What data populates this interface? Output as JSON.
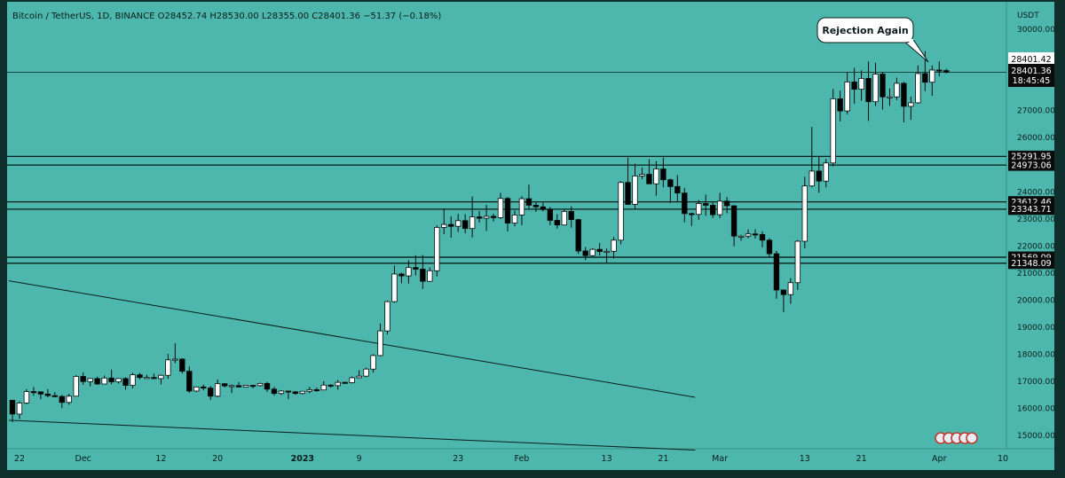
{
  "header": {
    "info": "Bitcoin / TetherUS, 1D, BINANCE  O28452.74  H28530.00  L28355.00  C28401.36  −51.37 (−0.18%)"
  },
  "callout": "Rejection Again",
  "price_labels": {
    "last_price": "28401.42",
    "current_price": "28401.36",
    "countdown": "18:45:45"
  },
  "colors": {
    "background": "#4db7ae",
    "panel": "#0f2f2c",
    "candle_up": "#ffffff",
    "candle_down": "#000000",
    "axis_text": "#0b1d1b"
  },
  "chart_data": {
    "type": "candlestick",
    "symbol": "Bitcoin / TetherUS",
    "interval": "1D",
    "exchange": "BINANCE",
    "y_unit": "USDT",
    "ylim": [
      14500,
      31000
    ],
    "y_ticks": [
      15000,
      16000,
      17000,
      18000,
      19000,
      20000,
      21000,
      22000,
      23000,
      24000,
      25000,
      26000,
      27000,
      28000,
      29000,
      30000
    ],
    "y_tick_labels": [
      "15000.00",
      "16000.00",
      "17000.00",
      "18000.00",
      "19000.00",
      "20000.00",
      "21000.00",
      "22000.00",
      "23000.00",
      "24000.00",
      "25000.00",
      "26000.00",
      "27000.00",
      "28000.00",
      "29000.00",
      "30000.00"
    ],
    "x_start": "2022-11-21",
    "x_end": "2023-04-11",
    "x_ticks": [
      {
        "date": "2022-11-22",
        "label": "22"
      },
      {
        "date": "2022-12-01",
        "label": "Dec"
      },
      {
        "date": "2022-12-12",
        "label": "12"
      },
      {
        "date": "2022-12-20",
        "label": "20"
      },
      {
        "date": "2023-01-01",
        "label": "2023"
      },
      {
        "date": "2023-01-09",
        "label": "9"
      },
      {
        "date": "2023-01-23",
        "label": "23"
      },
      {
        "date": "2023-02-01",
        "label": "Feb"
      },
      {
        "date": "2023-02-13",
        "label": "13"
      },
      {
        "date": "2023-02-21",
        "label": "21"
      },
      {
        "date": "2023-03-01",
        "label": "Mar"
      },
      {
        "date": "2023-03-13",
        "label": "13"
      },
      {
        "date": "2023-03-21",
        "label": "21"
      },
      {
        "date": "2023-04-01",
        "label": "Apr"
      },
      {
        "date": "2023-04-10",
        "label": "10"
      }
    ],
    "horizontal_levels": [
      {
        "price": 25291.95,
        "label": "25291.95"
      },
      {
        "price": 24973.06,
        "label": "24973.06"
      },
      {
        "price": 23612.46,
        "label": "23612.46"
      },
      {
        "price": 23343.71,
        "label": "23343.71"
      },
      {
        "price": 21569.09,
        "label": "21569.09"
      },
      {
        "price": 21348.09,
        "label": "21348.09"
      }
    ],
    "last_price_level": 28401.36,
    "trendlines": [
      {
        "from": {
          "date": "2022-11-21",
          "price": 20700
        },
        "to": {
          "date": "2023-02-26",
          "price": 16400
        }
      },
      {
        "from": {
          "date": "2022-11-21",
          "price": 15550
        },
        "to": {
          "date": "2023-02-26",
          "price": 14450
        }
      }
    ],
    "candles": [
      {
        "d": "2022-11-21",
        "o": 16290,
        "h": 16300,
        "l": 15480,
        "c": 15780
      },
      {
        "d": "2022-11-22",
        "o": 15780,
        "h": 16250,
        "l": 15600,
        "c": 16190
      },
      {
        "d": "2022-11-23",
        "o": 16190,
        "h": 16700,
        "l": 16150,
        "c": 16610
      },
      {
        "d": "2022-11-24",
        "o": 16610,
        "h": 16780,
        "l": 16460,
        "c": 16600
      },
      {
        "d": "2022-11-25",
        "o": 16600,
        "h": 16610,
        "l": 16330,
        "c": 16520
      },
      {
        "d": "2022-11-26",
        "o": 16520,
        "h": 16700,
        "l": 16400,
        "c": 16460
      },
      {
        "d": "2022-11-27",
        "o": 16460,
        "h": 16590,
        "l": 16400,
        "c": 16430
      },
      {
        "d": "2022-11-28",
        "o": 16430,
        "h": 16480,
        "l": 16000,
        "c": 16210
      },
      {
        "d": "2022-11-29",
        "o": 16210,
        "h": 16530,
        "l": 16120,
        "c": 16440
      },
      {
        "d": "2022-11-30",
        "o": 16440,
        "h": 17220,
        "l": 16430,
        "c": 17170
      },
      {
        "d": "2022-12-01",
        "o": 17170,
        "h": 17320,
        "l": 16860,
        "c": 16980
      },
      {
        "d": "2022-12-02",
        "o": 16980,
        "h": 17110,
        "l": 16800,
        "c": 17090
      },
      {
        "d": "2022-12-03",
        "o": 17090,
        "h": 17160,
        "l": 16860,
        "c": 16890
      },
      {
        "d": "2022-12-04",
        "o": 16890,
        "h": 17200,
        "l": 16880,
        "c": 17110
      },
      {
        "d": "2022-12-05",
        "o": 17110,
        "h": 17420,
        "l": 16880,
        "c": 16970
      },
      {
        "d": "2022-12-06",
        "o": 16970,
        "h": 17100,
        "l": 16900,
        "c": 17090
      },
      {
        "d": "2022-12-07",
        "o": 17090,
        "h": 17140,
        "l": 16680,
        "c": 16840
      },
      {
        "d": "2022-12-08",
        "o": 16840,
        "h": 17300,
        "l": 16730,
        "c": 17230
      },
      {
        "d": "2022-12-09",
        "o": 17230,
        "h": 17300,
        "l": 17060,
        "c": 17130
      },
      {
        "d": "2022-12-10",
        "o": 17130,
        "h": 17230,
        "l": 17090,
        "c": 17130
      },
      {
        "d": "2022-12-11",
        "o": 17130,
        "h": 17270,
        "l": 17070,
        "c": 17090
      },
      {
        "d": "2022-12-12",
        "o": 17090,
        "h": 17240,
        "l": 16870,
        "c": 17210
      },
      {
        "d": "2022-12-13",
        "o": 17210,
        "h": 18000,
        "l": 17080,
        "c": 17780
      },
      {
        "d": "2022-12-14",
        "o": 17780,
        "h": 18390,
        "l": 17660,
        "c": 17810
      },
      {
        "d": "2022-12-15",
        "o": 17810,
        "h": 17840,
        "l": 17280,
        "c": 17360
      },
      {
        "d": "2022-12-16",
        "o": 17360,
        "h": 17540,
        "l": 16560,
        "c": 16630
      },
      {
        "d": "2022-12-17",
        "o": 16630,
        "h": 16800,
        "l": 16590,
        "c": 16780
      },
      {
        "d": "2022-12-18",
        "o": 16780,
        "h": 16870,
        "l": 16660,
        "c": 16740
      },
      {
        "d": "2022-12-19",
        "o": 16740,
        "h": 16820,
        "l": 16300,
        "c": 16440
      },
      {
        "d": "2022-12-20",
        "o": 16440,
        "h": 17060,
        "l": 16400,
        "c": 16900
      },
      {
        "d": "2022-12-21",
        "o": 16900,
        "h": 16920,
        "l": 16760,
        "c": 16820
      },
      {
        "d": "2022-12-22",
        "o": 16820,
        "h": 16870,
        "l": 16560,
        "c": 16830
      },
      {
        "d": "2022-12-23",
        "o": 16830,
        "h": 16960,
        "l": 16760,
        "c": 16780
      },
      {
        "d": "2022-12-24",
        "o": 16780,
        "h": 16860,
        "l": 16770,
        "c": 16840
      },
      {
        "d": "2022-12-25",
        "o": 16840,
        "h": 16860,
        "l": 16730,
        "c": 16830
      },
      {
        "d": "2022-12-26",
        "o": 16830,
        "h": 16940,
        "l": 16790,
        "c": 16910
      },
      {
        "d": "2022-12-27",
        "o": 16910,
        "h": 16970,
        "l": 16600,
        "c": 16700
      },
      {
        "d": "2022-12-28",
        "o": 16700,
        "h": 16780,
        "l": 16460,
        "c": 16540
      },
      {
        "d": "2022-12-29",
        "o": 16540,
        "h": 16660,
        "l": 16480,
        "c": 16630
      },
      {
        "d": "2022-12-30",
        "o": 16630,
        "h": 16640,
        "l": 16330,
        "c": 16600
      },
      {
        "d": "2022-12-31",
        "o": 16600,
        "h": 16630,
        "l": 16490,
        "c": 16540
      },
      {
        "d": "2023-01-01",
        "o": 16540,
        "h": 16630,
        "l": 16500,
        "c": 16620
      },
      {
        "d": "2023-01-02",
        "o": 16620,
        "h": 16790,
        "l": 16550,
        "c": 16680
      },
      {
        "d": "2023-01-03",
        "o": 16680,
        "h": 16760,
        "l": 16600,
        "c": 16670
      },
      {
        "d": "2023-01-04",
        "o": 16670,
        "h": 16990,
        "l": 16660,
        "c": 16850
      },
      {
        "d": "2023-01-05",
        "o": 16850,
        "h": 16880,
        "l": 16750,
        "c": 16830
      },
      {
        "d": "2023-01-06",
        "o": 16830,
        "h": 17040,
        "l": 16680,
        "c": 16950
      },
      {
        "d": "2023-01-07",
        "o": 16950,
        "h": 16970,
        "l": 16910,
        "c": 16940
      },
      {
        "d": "2023-01-08",
        "o": 16940,
        "h": 17170,
        "l": 16910,
        "c": 17120
      },
      {
        "d": "2023-01-09",
        "o": 17120,
        "h": 17400,
        "l": 17100,
        "c": 17180
      },
      {
        "d": "2023-01-10",
        "o": 17180,
        "h": 17490,
        "l": 17140,
        "c": 17440
      },
      {
        "d": "2023-01-11",
        "o": 17440,
        "h": 17990,
        "l": 17310,
        "c": 17940
      },
      {
        "d": "2023-01-12",
        "o": 17940,
        "h": 19120,
        "l": 17910,
        "c": 18850
      },
      {
        "d": "2023-01-13",
        "o": 18850,
        "h": 19970,
        "l": 18720,
        "c": 19930
      },
      {
        "d": "2023-01-14",
        "o": 19930,
        "h": 21260,
        "l": 19890,
        "c": 20950
      },
      {
        "d": "2023-01-15",
        "o": 20950,
        "h": 21000,
        "l": 20610,
        "c": 20880
      },
      {
        "d": "2023-01-16",
        "o": 20880,
        "h": 21460,
        "l": 20600,
        "c": 21190
      },
      {
        "d": "2023-01-17",
        "o": 21190,
        "h": 21640,
        "l": 20900,
        "c": 21130
      },
      {
        "d": "2023-01-18",
        "o": 21130,
        "h": 21650,
        "l": 20400,
        "c": 20680
      },
      {
        "d": "2023-01-19",
        "o": 20680,
        "h": 21190,
        "l": 20660,
        "c": 21070
      },
      {
        "d": "2023-01-20",
        "o": 21070,
        "h": 22750,
        "l": 20860,
        "c": 22670
      },
      {
        "d": "2023-01-21",
        "o": 22670,
        "h": 23370,
        "l": 22420,
        "c": 22780
      },
      {
        "d": "2023-01-22",
        "o": 22780,
        "h": 23080,
        "l": 22290,
        "c": 22710
      },
      {
        "d": "2023-01-23",
        "o": 22710,
        "h": 23170,
        "l": 22500,
        "c": 22920
      },
      {
        "d": "2023-01-24",
        "o": 22920,
        "h": 23160,
        "l": 22450,
        "c": 22630
      },
      {
        "d": "2023-01-25",
        "o": 22630,
        "h": 23810,
        "l": 22300,
        "c": 23060
      },
      {
        "d": "2023-01-26",
        "o": 23060,
        "h": 23280,
        "l": 22850,
        "c": 23010
      },
      {
        "d": "2023-01-27",
        "o": 23010,
        "h": 23500,
        "l": 22540,
        "c": 23080
      },
      {
        "d": "2023-01-28",
        "o": 23080,
        "h": 23180,
        "l": 22890,
        "c": 23030
      },
      {
        "d": "2023-01-29",
        "o": 23030,
        "h": 23950,
        "l": 22980,
        "c": 23740
      },
      {
        "d": "2023-01-30",
        "o": 23740,
        "h": 23790,
        "l": 22520,
        "c": 22830
      },
      {
        "d": "2023-01-31",
        "o": 22830,
        "h": 23300,
        "l": 22710,
        "c": 23130
      },
      {
        "d": "2023-02-01",
        "o": 23130,
        "h": 23820,
        "l": 22750,
        "c": 23730
      },
      {
        "d": "2023-02-02",
        "o": 23730,
        "h": 24250,
        "l": 23370,
        "c": 23490
      },
      {
        "d": "2023-02-03",
        "o": 23490,
        "h": 23590,
        "l": 23240,
        "c": 23430
      },
      {
        "d": "2023-02-04",
        "o": 23430,
        "h": 23580,
        "l": 23260,
        "c": 23330
      },
      {
        "d": "2023-02-05",
        "o": 23330,
        "h": 23430,
        "l": 22750,
        "c": 22930
      },
      {
        "d": "2023-02-06",
        "o": 22930,
        "h": 23160,
        "l": 22630,
        "c": 22760
      },
      {
        "d": "2023-02-07",
        "o": 22760,
        "h": 23350,
        "l": 22740,
        "c": 23260
      },
      {
        "d": "2023-02-08",
        "o": 23260,
        "h": 23450,
        "l": 22660,
        "c": 22960
      },
      {
        "d": "2023-02-09",
        "o": 22960,
        "h": 22990,
        "l": 21690,
        "c": 21800
      },
      {
        "d": "2023-02-10",
        "o": 21800,
        "h": 21950,
        "l": 21460,
        "c": 21630
      },
      {
        "d": "2023-02-11",
        "o": 21630,
        "h": 21900,
        "l": 21600,
        "c": 21860
      },
      {
        "d": "2023-02-12",
        "o": 21860,
        "h": 22090,
        "l": 21630,
        "c": 21780
      },
      {
        "d": "2023-02-13",
        "o": 21780,
        "h": 21890,
        "l": 21350,
        "c": 21790
      },
      {
        "d": "2023-02-14",
        "o": 21790,
        "h": 22320,
        "l": 21530,
        "c": 22200
      },
      {
        "d": "2023-02-15",
        "o": 22200,
        "h": 24380,
        "l": 22050,
        "c": 24330
      },
      {
        "d": "2023-02-16",
        "o": 24330,
        "h": 25250,
        "l": 23500,
        "c": 23520
      },
      {
        "d": "2023-02-17",
        "o": 23520,
        "h": 25020,
        "l": 23340,
        "c": 24570
      },
      {
        "d": "2023-02-18",
        "o": 24570,
        "h": 24880,
        "l": 24450,
        "c": 24630
      },
      {
        "d": "2023-02-19",
        "o": 24630,
        "h": 25190,
        "l": 24280,
        "c": 24280
      },
      {
        "d": "2023-02-20",
        "o": 24280,
        "h": 25120,
        "l": 23840,
        "c": 24830
      },
      {
        "d": "2023-02-21",
        "o": 24830,
        "h": 25250,
        "l": 24150,
        "c": 24430
      },
      {
        "d": "2023-02-22",
        "o": 24430,
        "h": 24470,
        "l": 23570,
        "c": 24180
      },
      {
        "d": "2023-02-23",
        "o": 24180,
        "h": 24600,
        "l": 23610,
        "c": 23940
      },
      {
        "d": "2023-02-24",
        "o": 23940,
        "h": 24130,
        "l": 22860,
        "c": 23180
      },
      {
        "d": "2023-02-25",
        "o": 23180,
        "h": 23220,
        "l": 22720,
        "c": 23150
      },
      {
        "d": "2023-02-26",
        "o": 23150,
        "h": 23680,
        "l": 22950,
        "c": 23550
      },
      {
        "d": "2023-02-27",
        "o": 23550,
        "h": 23880,
        "l": 23100,
        "c": 23490
      },
      {
        "d": "2023-02-28",
        "o": 23490,
        "h": 23590,
        "l": 23020,
        "c": 23140
      },
      {
        "d": "2023-03-01",
        "o": 23140,
        "h": 23950,
        "l": 23020,
        "c": 23640
      },
      {
        "d": "2023-03-02",
        "o": 23640,
        "h": 23790,
        "l": 23190,
        "c": 23470
      },
      {
        "d": "2023-03-03",
        "o": 23470,
        "h": 23480,
        "l": 21970,
        "c": 22350
      },
      {
        "d": "2023-03-04",
        "o": 22350,
        "h": 22400,
        "l": 22180,
        "c": 22350
      },
      {
        "d": "2023-03-05",
        "o": 22350,
        "h": 22600,
        "l": 22270,
        "c": 22430
      },
      {
        "d": "2023-03-06",
        "o": 22430,
        "h": 22600,
        "l": 22260,
        "c": 22410
      },
      {
        "d": "2023-03-07",
        "o": 22410,
        "h": 22530,
        "l": 21930,
        "c": 22200
      },
      {
        "d": "2023-03-08",
        "o": 22200,
        "h": 22270,
        "l": 21580,
        "c": 21700
      },
      {
        "d": "2023-03-09",
        "o": 21700,
        "h": 21810,
        "l": 20040,
        "c": 20360
      },
      {
        "d": "2023-03-10",
        "o": 20360,
        "h": 20370,
        "l": 19550,
        "c": 20190
      },
      {
        "d": "2023-03-11",
        "o": 20190,
        "h": 20800,
        "l": 19850,
        "c": 20630
      },
      {
        "d": "2023-03-12",
        "o": 20630,
        "h": 22200,
        "l": 20360,
        "c": 22160
      },
      {
        "d": "2023-03-13",
        "o": 22160,
        "h": 24540,
        "l": 21900,
        "c": 24200
      },
      {
        "d": "2023-03-14",
        "o": 24200,
        "h": 26380,
        "l": 24150,
        "c": 24750
      },
      {
        "d": "2023-03-15",
        "o": 24750,
        "h": 25300,
        "l": 23950,
        "c": 24380
      },
      {
        "d": "2023-03-16",
        "o": 24380,
        "h": 25200,
        "l": 24150,
        "c": 25050
      },
      {
        "d": "2023-03-17",
        "o": 25050,
        "h": 27780,
        "l": 24930,
        "c": 27420
      },
      {
        "d": "2023-03-18",
        "o": 27420,
        "h": 27720,
        "l": 26580,
        "c": 26970
      },
      {
        "d": "2023-03-19",
        "o": 26970,
        "h": 28390,
        "l": 26850,
        "c": 28040
      },
      {
        "d": "2023-03-20",
        "o": 28040,
        "h": 28560,
        "l": 27240,
        "c": 27770
      },
      {
        "d": "2023-03-21",
        "o": 27770,
        "h": 28470,
        "l": 27350,
        "c": 28170
      },
      {
        "d": "2023-03-22",
        "o": 28170,
        "h": 28800,
        "l": 26600,
        "c": 27310
      },
      {
        "d": "2023-03-23",
        "o": 27310,
        "h": 28750,
        "l": 27150,
        "c": 28330
      },
      {
        "d": "2023-03-24",
        "o": 28330,
        "h": 28400,
        "l": 27020,
        "c": 27490
      },
      {
        "d": "2023-03-25",
        "o": 27490,
        "h": 27800,
        "l": 27160,
        "c": 27490
      },
      {
        "d": "2023-03-26",
        "o": 27490,
        "h": 28200,
        "l": 27370,
        "c": 27990
      },
      {
        "d": "2023-03-27",
        "o": 27990,
        "h": 28040,
        "l": 26550,
        "c": 27140
      },
      {
        "d": "2023-03-28",
        "o": 27140,
        "h": 27500,
        "l": 26640,
        "c": 27270
      },
      {
        "d": "2023-03-29",
        "o": 27270,
        "h": 28650,
        "l": 27240,
        "c": 28350
      },
      {
        "d": "2023-03-30",
        "o": 28350,
        "h": 29180,
        "l": 27700,
        "c": 28030
      },
      {
        "d": "2023-03-31",
        "o": 28030,
        "h": 28650,
        "l": 27530,
        "c": 28480
      },
      {
        "d": "2023-04-01",
        "o": 28480,
        "h": 28800,
        "l": 28250,
        "c": 28460
      },
      {
        "d": "2023-04-02",
        "o": 28460,
        "h": 28530,
        "l": 28355,
        "c": 28401
      }
    ]
  }
}
